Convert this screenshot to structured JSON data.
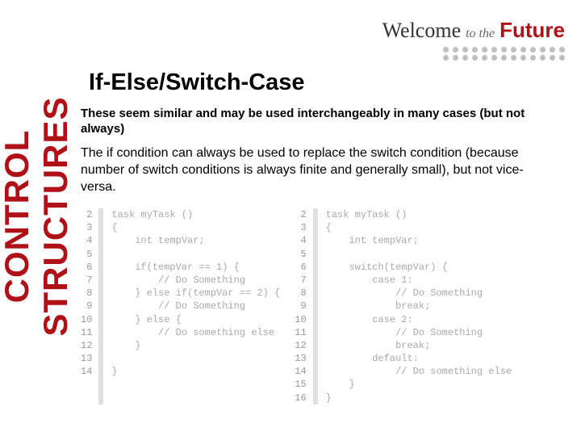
{
  "sidebar": {
    "label": "CONTROL STRUCTURES"
  },
  "header": {
    "welcome": "Welcome",
    "tothe": "to the",
    "future": "Future"
  },
  "title": "If-Else/Switch-Case",
  "intro1": "These seem similar and may be used interchangeably in many cases (but not always)",
  "intro2": "The if condition can always be used to replace the switch condition (because number of switch conditions is always finite and generally small), but not vice-versa.",
  "code_left": {
    "line_numbers": "2\n3\n4\n5\n6\n7\n8\n9\n10\n11\n12\n13\n14",
    "text": "task myTask ()\n{\n    int tempVar;\n\n    if(tempVar == 1) {\n        // Do Something\n    } else if(tempVar == 2) {\n        // Do Something\n    } else {\n        // Do something else\n    }\n\n}"
  },
  "code_right": {
    "line_numbers": "2\n3\n4\n5\n6\n7\n8\n9\n10\n11\n12\n13\n14\n15\n16",
    "text": "task myTask ()\n{\n    int tempVar;\n\n    switch(tempVar) {\n        case 1:\n            // Do Something\n            break;\n        case 2:\n            // Do Something\n            break;\n        default:\n            // Do something else\n    }\n}"
  },
  "colors": {
    "brand_red": "#b01116",
    "text_black": "#000000",
    "code_grey": "#aaaaaa",
    "dot_grey": "#bfbfbf",
    "background": "#ffffff"
  }
}
